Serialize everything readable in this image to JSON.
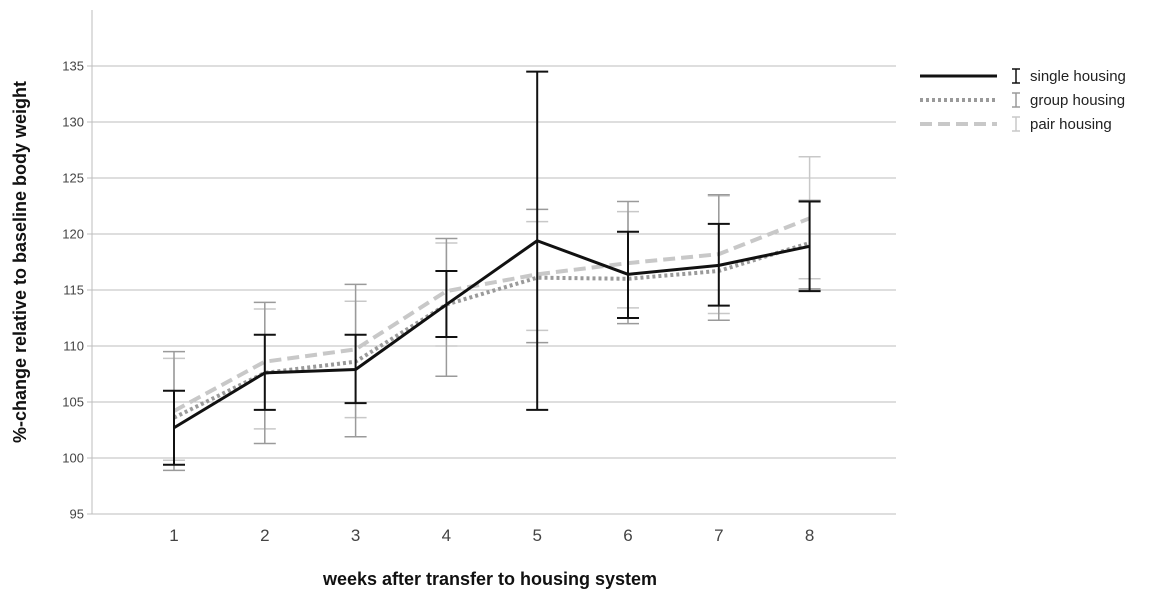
{
  "chart_data": {
    "type": "line",
    "title": "",
    "xlabel": "weeks after transfer to housing system",
    "ylabel": "%-change relative to baseline body weight",
    "categories": [
      "1",
      "2",
      "3",
      "4",
      "5",
      "6",
      "7",
      "8"
    ],
    "ylim": [
      95,
      140
    ],
    "yticks": [
      95,
      100,
      105,
      110,
      115,
      120,
      125,
      130,
      135
    ],
    "grid": true,
    "legend_position": "top-right",
    "series": [
      {
        "name": "single housing",
        "style": "solid",
        "color": "#111111",
        "values": [
          102.7,
          107.6,
          107.9,
          113.7,
          119.4,
          116.4,
          117.2,
          118.9
        ],
        "err_low": [
          99.4,
          104.3,
          104.9,
          110.8,
          104.3,
          112.5,
          113.6,
          114.9
        ],
        "err_high": [
          106.0,
          111.0,
          111.0,
          116.7,
          134.5,
          120.2,
          120.9,
          122.9
        ]
      },
      {
        "name": "group housing",
        "style": "dotted",
        "color": "#9a9a9a",
        "values": [
          103.6,
          107.6,
          108.6,
          113.7,
          116.1,
          116.0,
          116.7,
          119.2
        ],
        "err_low": [
          98.9,
          101.3,
          101.9,
          107.3,
          110.3,
          112.0,
          112.3,
          115.1
        ],
        "err_high": [
          109.5,
          113.9,
          115.5,
          119.6,
          122.2,
          122.9,
          123.5,
          123.0
        ]
      },
      {
        "name": "pair housing",
        "style": "dashed",
        "color": "#c8c8c8",
        "values": [
          104.2,
          108.6,
          109.7,
          114.9,
          116.4,
          117.4,
          118.2,
          121.4
        ],
        "err_low": [
          99.8,
          102.6,
          103.6,
          110.0,
          111.4,
          113.4,
          112.9,
          116.0
        ],
        "err_high": [
          108.9,
          113.3,
          114.0,
          119.2,
          121.1,
          122.0,
          123.4,
          126.9
        ]
      }
    ]
  }
}
